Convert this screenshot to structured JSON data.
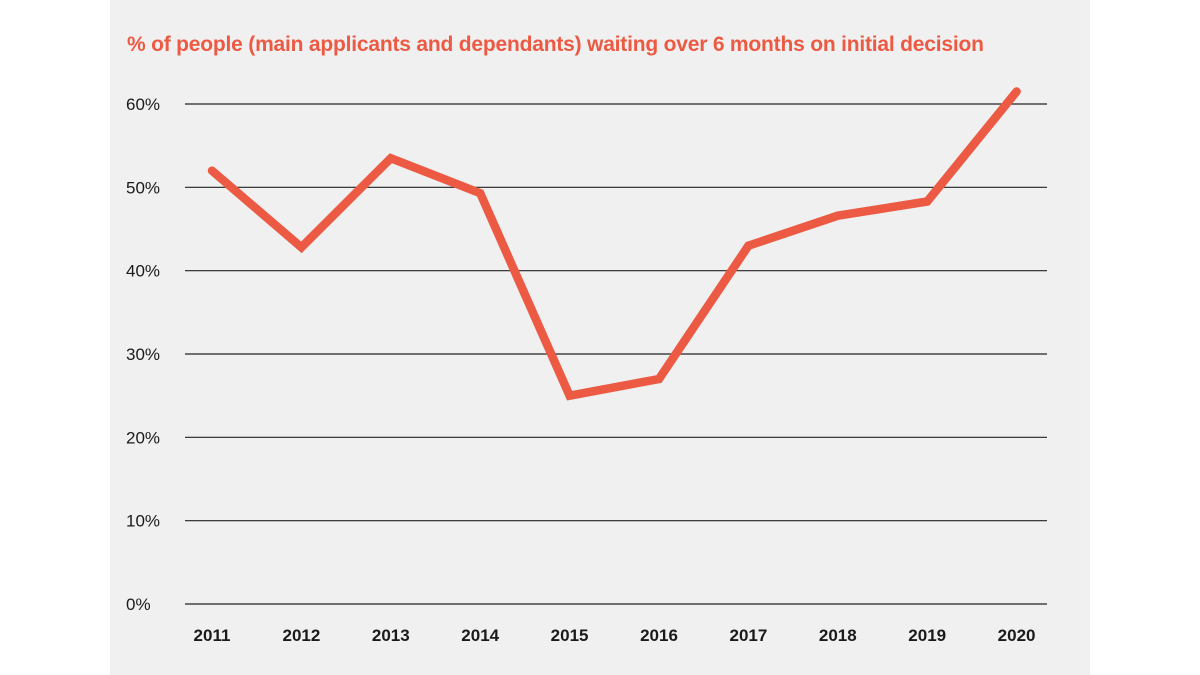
{
  "chart_data": {
    "type": "line",
    "title": "% of people (main applicants and dependants) waiting over 6 months on initial decision",
    "xlabel": "",
    "ylabel": "",
    "x": [
      "2011",
      "2012",
      "2013",
      "2014",
      "2015",
      "2016",
      "2017",
      "2018",
      "2019",
      "2020"
    ],
    "series": [
      {
        "values": [
          52,
          42.8,
          53.5,
          49.3,
          25,
          27,
          43,
          46.6,
          48.3,
          61.5
        ]
      }
    ],
    "ylim": [
      0,
      60
    ],
    "yticks": [
      0,
      10,
      20,
      30,
      40,
      50,
      60
    ],
    "ytick_labels": [
      "0%",
      "10%",
      "20%",
      "30%",
      "40%",
      "50%",
      "60%"
    ],
    "grid": "horizontal",
    "legend": "none",
    "colors": {
      "line": "#ec5a43",
      "title": "#ec5a43",
      "grid": "#222222",
      "panel": "#f0f0f0"
    }
  }
}
